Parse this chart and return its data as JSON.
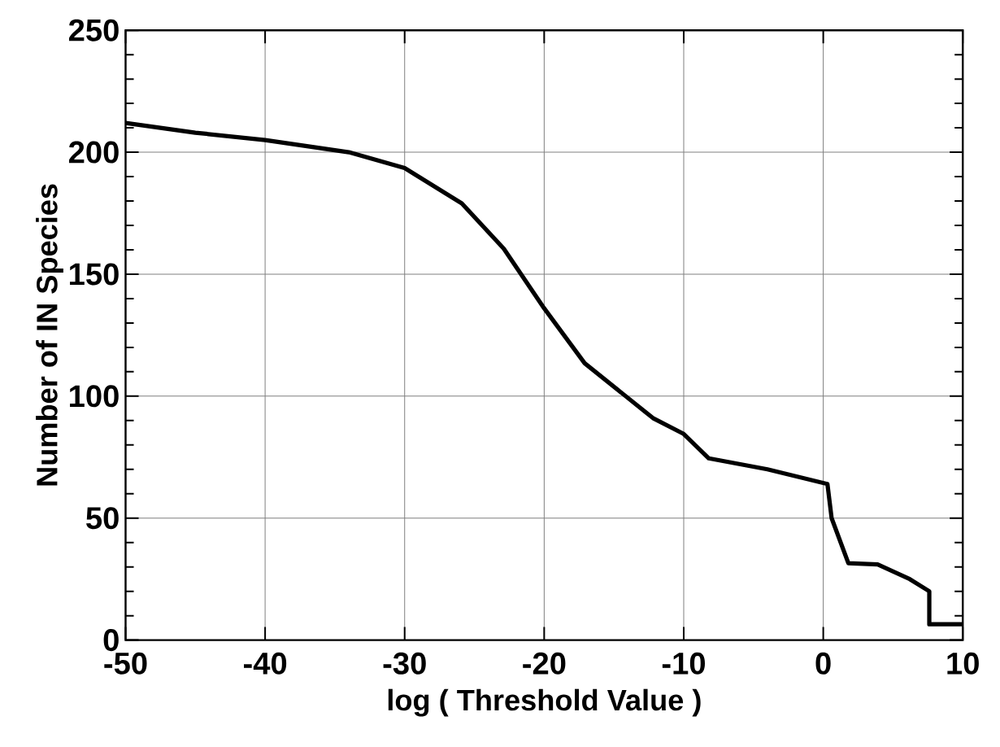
{
  "chart_data": {
    "type": "line",
    "xlabel": "log ( Threshold Value )",
    "ylabel": "Number of IN Species",
    "x": [
      -50,
      -45,
      -40,
      -34,
      -30,
      -25.9,
      -22.9,
      -20,
      -17.1,
      -12.2,
      -10,
      -8.2,
      -4,
      0.3,
      0.6,
      1.8,
      3.9,
      6.2,
      7.6,
      7.6,
      10
    ],
    "series": [
      {
        "color": "#000000",
        "values": [
          212,
          208,
          205,
          200,
          193.5,
          179,
          160.5,
          136,
          113.5,
          91,
          84.5,
          74.5,
          70,
          64,
          50,
          31.5,
          31,
          25,
          20,
          6.5,
          6.5
        ]
      }
    ],
    "xlim": [
      -50,
      10
    ],
    "ylim": [
      0,
      250
    ],
    "xticks": [
      -50,
      -40,
      -30,
      -20,
      -10,
      0,
      10
    ],
    "yticks": [
      0,
      50,
      100,
      150,
      200,
      250
    ],
    "grid": true,
    "marker": "none",
    "line_style": "solid"
  }
}
